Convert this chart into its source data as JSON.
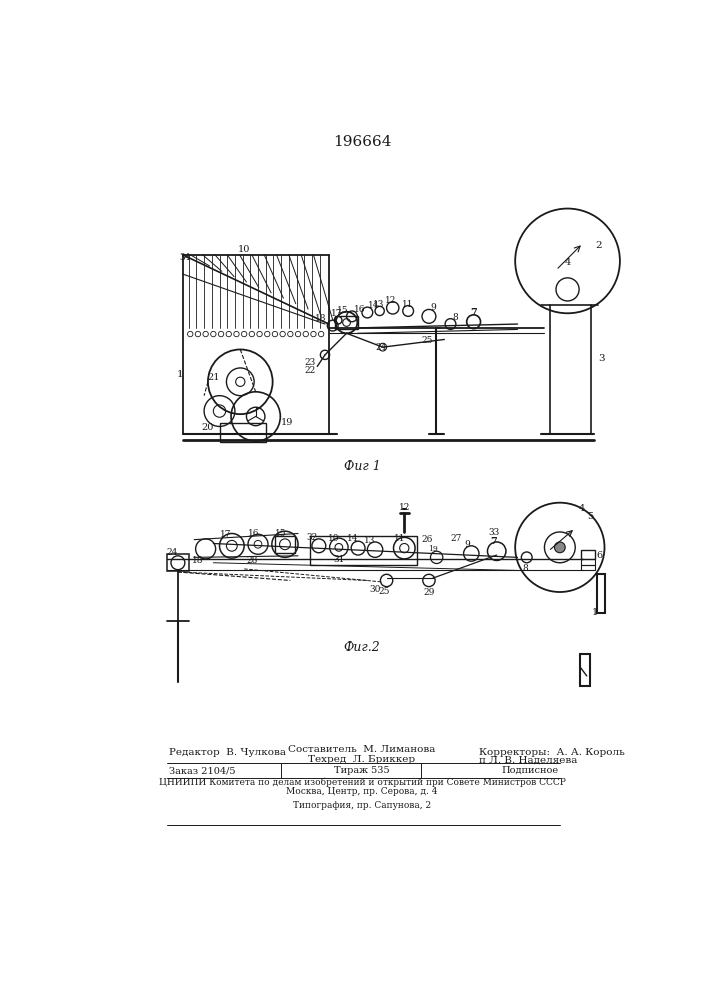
{
  "title": "196664",
  "fig1_caption": "Фиг 1",
  "fig2_caption": "Фиг.2",
  "ed": "Редактор  В. Чулкова",
  "comp": "Составитель  М. Лиманова",
  "tech": "Техред  Л. Бриккер",
  "corr": "Корректоры:  А. А. Король",
  "corr2": "п Л. В. Наделяева",
  "order": "Заказ 2104/5",
  "circ": "Тираж 535",
  "sub": "Подписное",
  "line4": "ЦНИИПИ Комитета по делам изобретений и открытий при Совете Министров СССР",
  "line5": "Москва, Центр, пр. Серова, д. 4",
  "line6": "Типография, пр. Сапунова, 2",
  "bg": "#ffffff",
  "lc": "#1a1a1a"
}
